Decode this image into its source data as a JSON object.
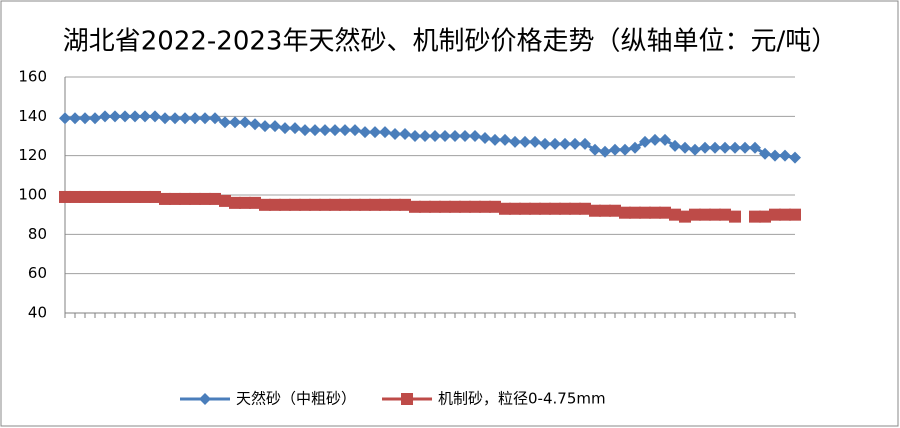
{
  "chart_data": {
    "type": "line",
    "title": "湖北省2022-2023年天然砂、机制砂价格走势（纵轴单位：元/吨）",
    "categories": [
      null,
      null,
      null,
      null,
      null,
      null,
      null,
      null,
      null,
      null,
      null,
      null,
      null,
      null,
      null,
      null,
      null,
      null,
      null,
      null,
      null,
      null,
      null,
      null,
      null,
      null,
      null,
      null,
      null,
      null,
      null,
      null,
      null,
      null,
      null,
      null,
      null,
      null,
      null,
      null,
      null,
      null,
      null,
      null,
      null,
      null,
      null,
      null,
      null,
      null,
      null,
      null,
      null,
      null,
      null,
      null,
      null,
      null,
      null,
      null,
      null,
      null,
      null,
      null,
      null,
      null,
      null,
      null,
      null,
      null,
      null,
      null,
      null,
      null
    ],
    "series": [
      {
        "name": "天然砂（中粗砂）",
        "color": "#4a7ebb",
        "marker": "diamond",
        "values": [
          139,
          139,
          139,
          139,
          140,
          140,
          140,
          140,
          140,
          140,
          139,
          139,
          139,
          139,
          139,
          139,
          137,
          137,
          137,
          136,
          135,
          135,
          134,
          134,
          133,
          133,
          133,
          133,
          133,
          133,
          132,
          132,
          132,
          131,
          131,
          130,
          130,
          130,
          130,
          130,
          130,
          130,
          129,
          128,
          128,
          127,
          127,
          127,
          126,
          126,
          126,
          126,
          126,
          123,
          122,
          123,
          123,
          124,
          127,
          128,
          128,
          125,
          124,
          123,
          124,
          124,
          124,
          124,
          124,
          124,
          121,
          120,
          120,
          119
        ]
      },
      {
        "name": "机制砂，粒径0-4.75mm",
        "color": "#be4b48",
        "marker": "square",
        "values": [
          99,
          99,
          99,
          99,
          99,
          99,
          99,
          99,
          99,
          99,
          98,
          98,
          98,
          98,
          98,
          98,
          97,
          96,
          96,
          96,
          95,
          95,
          95,
          95,
          95,
          95,
          95,
          95,
          95,
          95,
          95,
          95,
          95,
          95,
          95,
          94,
          94,
          94,
          94,
          94,
          94,
          94,
          94,
          94,
          93,
          93,
          93,
          93,
          93,
          93,
          93,
          93,
          93,
          92,
          92,
          92,
          91,
          91,
          91,
          91,
          91,
          90,
          89,
          90,
          90,
          90,
          90,
          89,
          null,
          89,
          89,
          90,
          90,
          90
        ]
      }
    ],
    "ylim": [
      40,
      160
    ],
    "yticks": [
      40,
      60,
      80,
      100,
      120,
      140,
      160
    ],
    "grid": true,
    "legend": "bottom"
  }
}
